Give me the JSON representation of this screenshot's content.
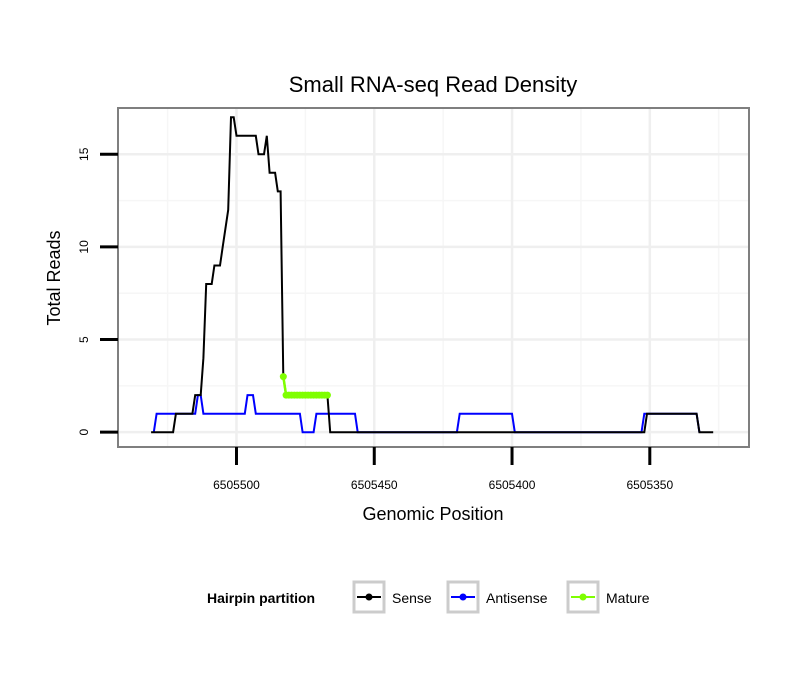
{
  "chart_data": {
    "type": "line",
    "title": "Small RNA-seq Read Density",
    "xlabel": "Genomic Position",
    "ylabel": "Total Reads",
    "xlim": [
      6505543,
      6505314
    ],
    "ylim": [
      -0.8,
      17.5
    ],
    "x_reversed": true,
    "x_ticks": [
      6505500,
      6505450,
      6505400,
      6505350
    ],
    "x_tick_labels": [
      "6505500",
      "6505450",
      "6505400",
      "6505350"
    ],
    "y_ticks": [
      0,
      5,
      10,
      15
    ],
    "y_tick_labels": [
      "0",
      "5",
      "10",
      "15"
    ],
    "grid": true,
    "legend_title": "Hairpin partition",
    "legend_position": "bottom",
    "series": [
      {
        "name": "Sense",
        "color": "#000000",
        "points": [
          [
            6505531,
            0
          ],
          [
            6505523,
            0
          ],
          [
            6505522,
            1
          ],
          [
            6505516,
            1
          ],
          [
            6505515,
            2
          ],
          [
            6505513,
            2
          ],
          [
            6505512,
            4
          ],
          [
            6505511,
            8
          ],
          [
            6505509,
            8
          ],
          [
            6505508,
            9
          ],
          [
            6505506,
            9
          ],
          [
            6505505,
            10
          ],
          [
            6505503,
            12
          ],
          [
            6505502,
            17
          ],
          [
            6505501,
            17
          ],
          [
            6505500,
            16
          ],
          [
            6505493,
            16
          ],
          [
            6505492,
            15
          ],
          [
            6505490,
            15
          ],
          [
            6505489,
            16
          ],
          [
            6505488,
            14
          ],
          [
            6505486,
            14
          ],
          [
            6505485,
            13
          ],
          [
            6505484,
            13
          ],
          [
            6505483,
            3
          ],
          [
            6505482,
            2
          ],
          [
            6505467,
            2
          ],
          [
            6505466,
            0
          ],
          [
            6505352,
            0
          ],
          [
            6505351,
            1
          ],
          [
            6505333,
            1
          ],
          [
            6505332,
            0
          ],
          [
            6505327,
            0
          ]
        ]
      },
      {
        "name": "Antisense",
        "color": "#0000ff",
        "points": [
          [
            6505530,
            0
          ],
          [
            6505529,
            1
          ],
          [
            6505515,
            1
          ],
          [
            6505514,
            2
          ],
          [
            6505513,
            2
          ],
          [
            6505512,
            1
          ],
          [
            6505497,
            1
          ],
          [
            6505496,
            2
          ],
          [
            6505494,
            2
          ],
          [
            6505493,
            1
          ],
          [
            6505477,
            1
          ],
          [
            6505476,
            0
          ],
          [
            6505472,
            0
          ],
          [
            6505471,
            1
          ],
          [
            6505457,
            1
          ],
          [
            6505456,
            0
          ],
          [
            6505420,
            0
          ],
          [
            6505419,
            1
          ],
          [
            6505400,
            1
          ],
          [
            6505399,
            0
          ],
          [
            6505353,
            0
          ],
          [
            6505352,
            1
          ],
          [
            6505333,
            1
          ],
          [
            6505332,
            0
          ]
        ]
      },
      {
        "name": "Mature",
        "color": "#7fff00",
        "points": [
          [
            6505483,
            3
          ],
          [
            6505482,
            2
          ],
          [
            6505481,
            2
          ],
          [
            6505480,
            2
          ],
          [
            6505479,
            2
          ],
          [
            6505478,
            2
          ],
          [
            6505477,
            2
          ],
          [
            6505476,
            2
          ],
          [
            6505475,
            2
          ],
          [
            6505474,
            2
          ],
          [
            6505473,
            2
          ],
          [
            6505472,
            2
          ],
          [
            6505471,
            2
          ],
          [
            6505470,
            2
          ],
          [
            6505469,
            2
          ],
          [
            6505468,
            2
          ],
          [
            6505467,
            2
          ]
        ]
      }
    ]
  }
}
